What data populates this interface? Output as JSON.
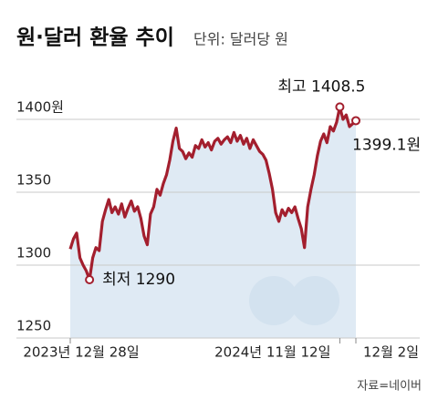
{
  "chart_data": {
    "type": "line",
    "title": "원·달러 환율 추이",
    "subtitle": "단위: 달러당 원",
    "source": "자료=네이버",
    "color": "#a31f2e",
    "area_color": "#dfeaf4",
    "grid": true,
    "ylim": [
      1250,
      1420
    ],
    "yticks": [
      1250,
      1300,
      1350,
      {
        "value": 1400,
        "label": "1400원"
      }
    ],
    "categories": [
      "2023년 12월 28일",
      null,
      null,
      null,
      null,
      null,
      null,
      null,
      null,
      null,
      null,
      null,
      null,
      null,
      null,
      null,
      null,
      null,
      null,
      null,
      null,
      null,
      null,
      null,
      null,
      null,
      null,
      null,
      null,
      null,
      null,
      null,
      null,
      null,
      null,
      null,
      null,
      null,
      null,
      null,
      null,
      null,
      null,
      null,
      null,
      null,
      null,
      null,
      null,
      null,
      null,
      null,
      null,
      null,
      null,
      null,
      null,
      null,
      null,
      null,
      null,
      null,
      null,
      null,
      null,
      null,
      null,
      null,
      null,
      null,
      null,
      null,
      null,
      null,
      null,
      null,
      null,
      null,
      null,
      null,
      null,
      null,
      null,
      null,
      "2024년 11월 12일",
      null,
      null,
      null,
      null,
      "12월 2일"
    ],
    "values": [
      1311,
      1318,
      1322,
      1305,
      1300,
      1296,
      1290,
      1305,
      1312,
      1310,
      1330,
      1338,
      1345,
      1336,
      1340,
      1335,
      1342,
      1333,
      1339,
      1344,
      1337,
      1340,
      1332,
      1320,
      1314,
      1335,
      1340,
      1352,
      1348,
      1356,
      1362,
      1372,
      1385,
      1394,
      1380,
      1378,
      1373,
      1377,
      1374,
      1382,
      1380,
      1386,
      1381,
      1384,
      1379,
      1385,
      1387,
      1383,
      1386,
      1388,
      1384,
      1391,
      1385,
      1389,
      1383,
      1387,
      1380,
      1386,
      1382,
      1378,
      1376,
      1372,
      1363,
      1352,
      1336,
      1330,
      1338,
      1334,
      1339,
      1336,
      1340,
      1332,
      1325,
      1312,
      1340,
      1352,
      1362,
      1375,
      1385,
      1390,
      1384,
      1395,
      1392,
      1398,
      1408.5,
      1400,
      1403,
      1395,
      1397,
      1399.1
    ],
    "annotations": {
      "max": "최고 1408.5",
      "min": "최저 1290",
      "last": "1399.1원"
    }
  }
}
